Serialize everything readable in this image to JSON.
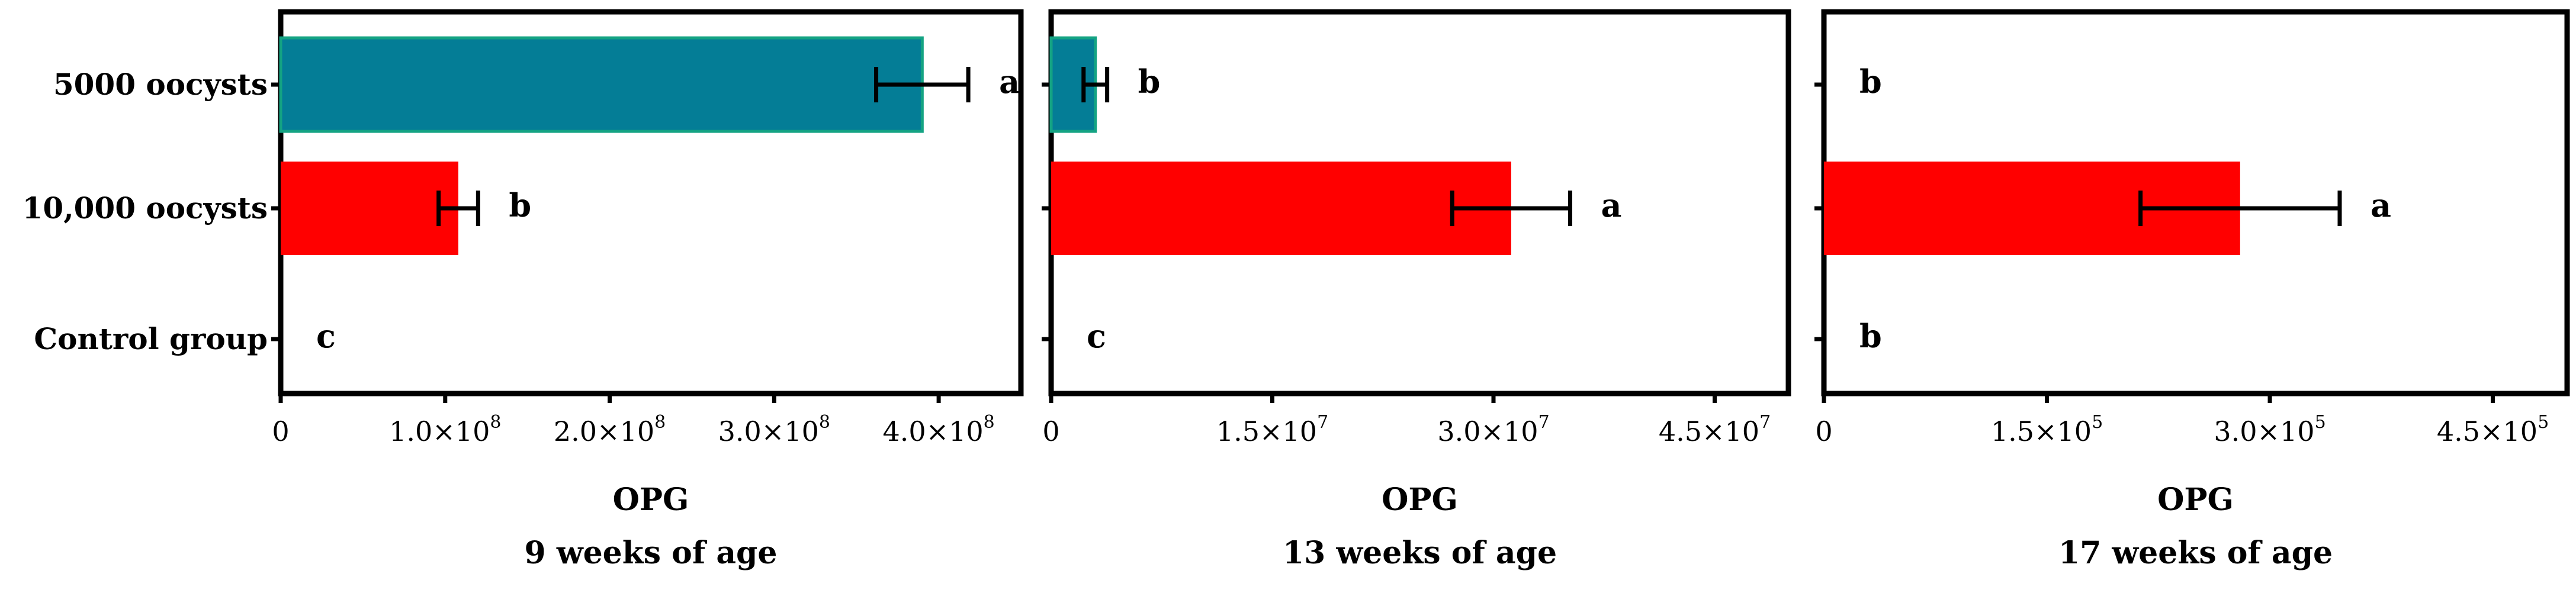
{
  "chart_data": [
    {
      "type": "bar",
      "orientation": "horizontal",
      "categories": [
        "5000 oocysts",
        "10,000 oocysts",
        "Control group"
      ],
      "values": [
        390000000,
        108000000,
        0
      ],
      "errors": [
        28000000,
        12000000,
        0
      ],
      "letters": [
        "a",
        "b",
        "c"
      ],
      "xlim": [
        0,
        450000000
      ],
      "ticks": [
        {
          "value": 0,
          "label": "0"
        },
        {
          "value": 100000000,
          "mant": "1.0×10",
          "exp": "8"
        },
        {
          "value": 200000000,
          "mant": "2.0×10",
          "exp": "8"
        },
        {
          "value": 300000000,
          "mant": "3.0×10",
          "exp": "8"
        },
        {
          "value": 400000000,
          "mant": "4.0×10",
          "exp": "8"
        }
      ],
      "xlabel": "OPG",
      "xlabel2": "9 weeks of age",
      "colors": [
        "#047d96",
        "#ff0000",
        "#ff0000"
      ],
      "grid": false
    },
    {
      "type": "bar",
      "orientation": "horizontal",
      "categories": [
        "5000 oocysts",
        "10,000 oocysts",
        "Control group"
      ],
      "values": [
        3000000,
        31200000,
        0
      ],
      "errors": [
        800000,
        4000000,
        0
      ],
      "letters": [
        "b",
        "a",
        "c"
      ],
      "xlim": [
        0,
        50000000
      ],
      "ticks": [
        {
          "value": 0,
          "label": "0"
        },
        {
          "value": 15000000,
          "mant": "1.5×10",
          "exp": "7"
        },
        {
          "value": 30000000,
          "mant": "3.0×10",
          "exp": "7"
        },
        {
          "value": 45000000,
          "mant": "4.5×10",
          "exp": "7"
        }
      ],
      "xlabel": "OPG",
      "xlabel2": "13 weeks of age",
      "colors": [
        "#047d96",
        "#ff0000",
        "#ff0000"
      ],
      "grid": false
    },
    {
      "type": "bar",
      "orientation": "horizontal",
      "categories": [
        "5000 oocysts",
        "10,000 oocysts",
        "Control group"
      ],
      "values": [
        0,
        280000,
        0
      ],
      "errors": [
        0,
        67000,
        0
      ],
      "letters": [
        "b",
        "a",
        "b"
      ],
      "xlim": [
        0,
        500000
      ],
      "ticks": [
        {
          "value": 0,
          "label": "0"
        },
        {
          "value": 150000,
          "mant": "1.5×10",
          "exp": "5"
        },
        {
          "value": 300000,
          "mant": "3.0×10",
          "exp": "5"
        },
        {
          "value": 450000,
          "mant": "4.5×10",
          "exp": "5"
        }
      ],
      "xlabel": "OPG",
      "xlabel2": "17 weeks of age",
      "colors": [
        "#047d96",
        "#ff0000",
        "#ff0000"
      ],
      "grid": false
    }
  ]
}
